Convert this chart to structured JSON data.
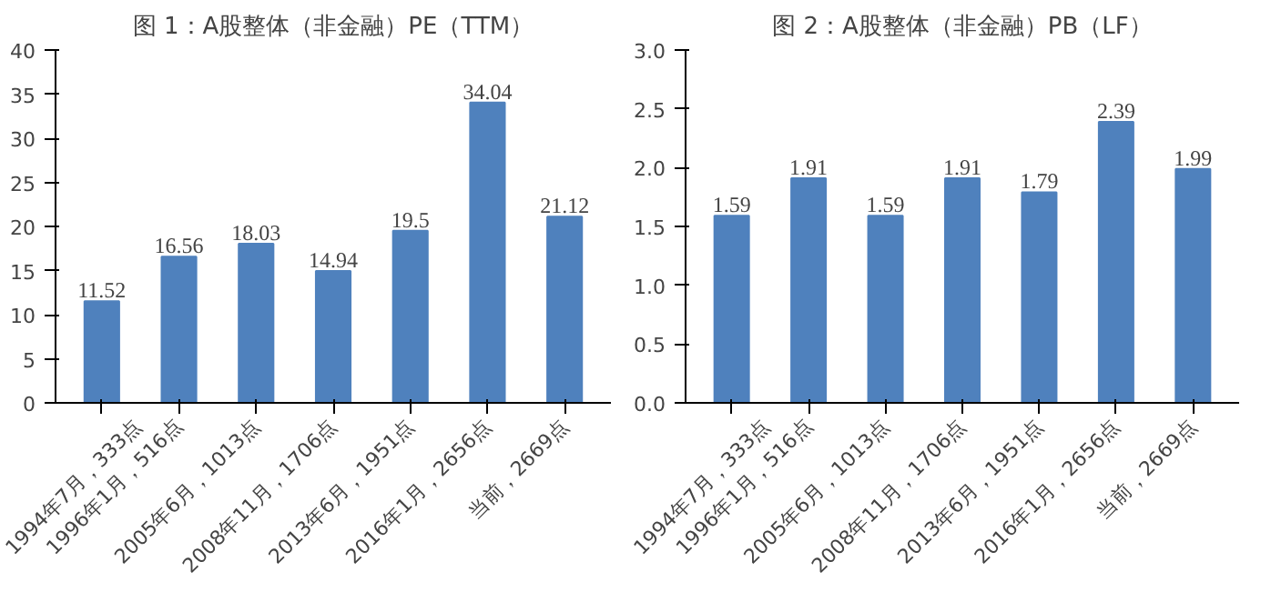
{
  "chart_data": [
    {
      "type": "bar",
      "title": "图 1：A股整体（非金融）PE（TTM）",
      "categories": [
        "1994年7月，333点",
        "1996年1月，516点",
        "2005年6月，1013点",
        "2008年11月，1706点",
        "2013年6月，1951点",
        "2016年1月，2656点",
        "当前，2669点"
      ],
      "values": [
        11.52,
        16.56,
        18.03,
        14.94,
        19.5,
        34.04,
        21.12
      ],
      "color": "#4f81bd",
      "ylim": [
        0,
        40
      ],
      "yticks": [
        0,
        5,
        10,
        15,
        20,
        25,
        30,
        35,
        40
      ],
      "data_labels": true,
      "grid": false
    },
    {
      "type": "bar",
      "title": "图 2：A股整体（非金融）PB（LF）",
      "categories": [
        "1994年7月，333点",
        "1996年1月，516点",
        "2005年6月，1013点",
        "2008年11月，1706点",
        "2013年6月，1951点",
        "2016年1月，2656点",
        "当前，2669点"
      ],
      "values": [
        1.59,
        1.91,
        1.59,
        1.91,
        1.79,
        2.39,
        1.99
      ],
      "color": "#4f81bd",
      "ylim": [
        0,
        3
      ],
      "yticks": [
        {
          "value": 0,
          "label": "0.0"
        },
        {
          "value": 0.5,
          "label": "0.5"
        },
        {
          "value": 1,
          "label": "1.0"
        },
        {
          "value": 1.5,
          "label": "1.5"
        },
        {
          "value": 2,
          "label": "2.0"
        },
        {
          "value": 2.5,
          "label": "2.5"
        },
        {
          "value": 3,
          "label": "3.0"
        }
      ],
      "data_labels": true,
      "grid": false
    }
  ]
}
